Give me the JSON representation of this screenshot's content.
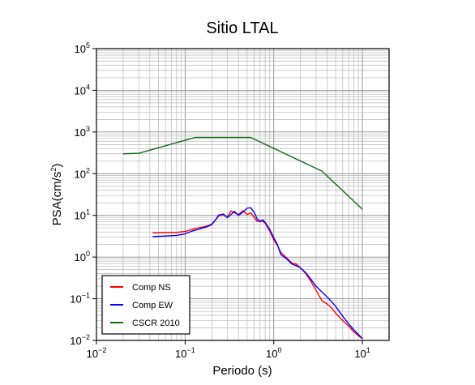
{
  "chart_data": {
    "type": "line",
    "title": "Sitio LTAL",
    "xlabel": "Periodo (s)",
    "ylabel_base": "PSA(cm/s",
    "ylabel_exp": "2",
    "ylabel_tail": ")",
    "x_scale": "log",
    "y_scale": "log",
    "xlim": [
      0.01,
      20
    ],
    "ylim": [
      0.01,
      100000
    ],
    "grid": true,
    "legend_position": "bottom-left",
    "x_ticks": [
      {
        "base": "10",
        "exp": "−2",
        "value": 0.01
      },
      {
        "base": "10",
        "exp": "−1",
        "value": 0.1
      },
      {
        "base": "10",
        "exp": "0",
        "value": 1
      },
      {
        "base": "10",
        "exp": "1",
        "value": 10
      }
    ],
    "y_ticks": [
      {
        "base": "10",
        "exp": "−2",
        "value": 0.01
      },
      {
        "base": "10",
        "exp": "−1",
        "value": 0.1
      },
      {
        "base": "10",
        "exp": "0",
        "value": 1
      },
      {
        "base": "10",
        "exp": "1",
        "value": 10
      },
      {
        "base": "10",
        "exp": "2",
        "value": 100
      },
      {
        "base": "10",
        "exp": "3",
        "value": 1000
      },
      {
        "base": "10",
        "exp": "4",
        "value": 10000
      },
      {
        "base": "10",
        "exp": "5",
        "value": 100000
      }
    ],
    "series": [
      {
        "name": "Comp NS",
        "color": "#ff0000",
        "x": [
          0.043,
          0.06,
          0.08,
          0.1,
          0.12,
          0.14,
          0.16,
          0.18,
          0.2,
          0.22,
          0.24,
          0.27,
          0.3,
          0.33,
          0.36,
          0.4,
          0.45,
          0.5,
          0.55,
          0.6,
          0.65,
          0.7,
          0.75,
          0.8,
          0.9,
          1.0,
          1.1,
          1.2,
          1.4,
          1.6,
          1.8,
          2.0,
          2.3,
          2.6,
          3.0,
          3.5,
          4.0,
          4.5,
          5.0,
          6.0,
          7.0,
          8.0,
          9.0,
          10.0
        ],
        "y": [
          3.8,
          3.85,
          3.9,
          4.1,
          4.6,
          5.0,
          5.3,
          5.6,
          6.2,
          7.8,
          9.8,
          10.2,
          9.0,
          12.8,
          11.5,
          10.5,
          13.0,
          10.5,
          11.5,
          9.0,
          7.2,
          7.5,
          7.2,
          6.5,
          4.2,
          2.6,
          1.9,
          1.3,
          0.95,
          0.72,
          0.68,
          0.55,
          0.4,
          0.27,
          0.16,
          0.09,
          0.075,
          0.06,
          0.045,
          0.03,
          0.022,
          0.016,
          0.013,
          0.011
        ]
      },
      {
        "name": "Comp EW",
        "color": "#0000ff",
        "x": [
          0.043,
          0.06,
          0.08,
          0.1,
          0.12,
          0.14,
          0.16,
          0.18,
          0.2,
          0.22,
          0.24,
          0.27,
          0.3,
          0.33,
          0.36,
          0.4,
          0.45,
          0.5,
          0.55,
          0.6,
          0.65,
          0.7,
          0.75,
          0.8,
          0.9,
          1.0,
          1.1,
          1.2,
          1.4,
          1.6,
          1.8,
          2.0,
          2.3,
          2.6,
          3.0,
          3.5,
          4.0,
          4.5,
          5.0,
          6.0,
          7.0,
          8.0,
          9.0,
          10.0
        ],
        "y": [
          3.1,
          3.2,
          3.3,
          3.6,
          4.2,
          4.6,
          5.0,
          5.4,
          6.0,
          7.8,
          10.2,
          10.8,
          8.8,
          10.5,
          12.5,
          10.0,
          12.0,
          14.8,
          15.2,
          12.0,
          8.2,
          7.0,
          7.8,
          6.8,
          4.6,
          2.9,
          2.0,
          1.15,
          0.9,
          0.68,
          0.62,
          0.55,
          0.42,
          0.3,
          0.2,
          0.145,
          0.11,
          0.085,
          0.065,
          0.038,
          0.025,
          0.018,
          0.014,
          0.011
        ]
      },
      {
        "name": "CSCR 2010",
        "color": "#136b13",
        "x": [
          0.02,
          0.03,
          0.13,
          0.55,
          3.5,
          10.0
        ],
        "y": [
          300,
          310,
          740,
          740,
          115,
          14
        ]
      }
    ]
  }
}
